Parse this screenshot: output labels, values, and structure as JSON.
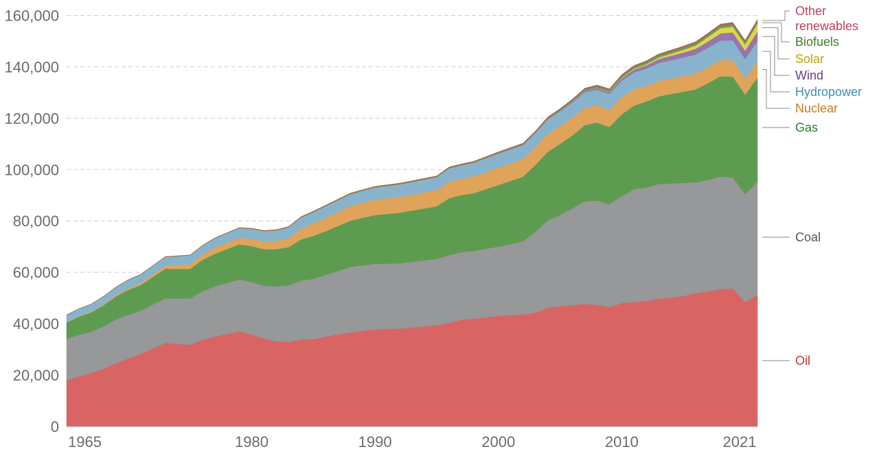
{
  "chart_data": {
    "type": "area",
    "stacked": true,
    "title": "",
    "xlabel": "",
    "ylabel": "",
    "xlim": [
      1965,
      2021
    ],
    "ylim": [
      0,
      165000
    ],
    "y_ticks": [
      0,
      20000,
      40000,
      60000,
      80000,
      100000,
      120000,
      140000,
      160000
    ],
    "y_tick_labels": [
      "0",
      "20,000",
      "40,000",
      "60,000",
      "80,000",
      "100,000",
      "120,000",
      "140,000",
      "160,000"
    ],
    "x_ticks": [
      1965,
      1980,
      1990,
      2000,
      2010,
      2021
    ],
    "x_tick_labels": [
      "1965",
      "1980",
      "1990",
      "2000",
      "2010",
      "2021"
    ],
    "grid": true,
    "legend_position": "right, labels at series ends",
    "keyframes": [
      1965,
      1966,
      1967,
      1968,
      1969,
      1970,
      1971,
      1973,
      1975,
      1976,
      1977,
      1979,
      1980,
      1981,
      1982,
      1983,
      1984,
      1985,
      1986,
      1988,
      1990,
      1992,
      1995,
      1996,
      1997,
      1998,
      2000,
      2002,
      2003,
      2004,
      2005,
      2006,
      2007,
      2008,
      2009,
      2010,
      2011,
      2012,
      2013,
      2015,
      2016,
      2017,
      2018,
      2019,
      2020,
      2021
    ],
    "series": [
      {
        "name": "Oil",
        "label": "Oil",
        "color": "#d96464",
        "label_color": "#c03232",
        "values": [
          18000,
          19500,
          20800,
          22600,
          24600,
          26500,
          28200,
          32500,
          31800,
          33800,
          35000,
          37000,
          35800,
          34300,
          33100,
          32900,
          33800,
          34000,
          35000,
          36600,
          37800,
          38100,
          39400,
          40300,
          41600,
          42000,
          43000,
          43600,
          44300,
          46200,
          46800,
          47200,
          47700,
          47300,
          46500,
          48000,
          48400,
          48900,
          49700,
          50800,
          51900,
          52600,
          53400,
          53700,
          48400,
          51200
        ]
      },
      {
        "name": "Coal",
        "label": "Coal",
        "color": "#979899",
        "label_color": "#555555",
        "values": [
          16000,
          16200,
          16100,
          16400,
          17000,
          17000,
          16800,
          17400,
          18000,
          18800,
          19500,
          20200,
          20400,
          20500,
          21400,
          22000,
          23000,
          23400,
          24000,
          25500,
          25500,
          25400,
          25800,
          26400,
          26300,
          26300,
          27000,
          28500,
          31500,
          34000,
          35500,
          37700,
          39900,
          40700,
          40000,
          41600,
          44000,
          44100,
          44700,
          44000,
          43100,
          43300,
          43900,
          43200,
          42000,
          44000
        ]
      },
      {
        "name": "Gas",
        "label": "Gas",
        "color": "#5d9b51",
        "label_color": "#2e7d32",
        "values": [
          6500,
          7000,
          7500,
          8200,
          9000,
          9700,
          10000,
          11500,
          11500,
          12200,
          12700,
          13700,
          14000,
          14200,
          14500,
          14900,
          16000,
          16800,
          17000,
          18000,
          19000,
          19700,
          20500,
          22100,
          22200,
          22500,
          24000,
          25100,
          26000,
          26700,
          27700,
          28400,
          29700,
          30300,
          30100,
          31900,
          32500,
          33500,
          34100,
          35500,
          36200,
          37800,
          39000,
          39300,
          38800,
          40500
        ]
      },
      {
        "name": "Nuclear",
        "label": "Nuclear",
        "color": "#e0a35a",
        "label_color": "#c77a1c",
        "values": [
          200,
          250,
          300,
          400,
          500,
          600,
          800,
          1200,
          1800,
          2000,
          2400,
          2500,
          2800,
          3000,
          3200,
          3500,
          4200,
          4800,
          5200,
          5700,
          6000,
          6200,
          6300,
          6500,
          6300,
          6500,
          6800,
          6900,
          6800,
          7000,
          6900,
          6900,
          6800,
          6700,
          6600,
          6700,
          6400,
          6000,
          6000,
          6100,
          6200,
          6200,
          6300,
          6400,
          6200,
          6400
        ]
      },
      {
        "name": "Hydropower",
        "label": "Hydropower",
        "color": "#87b4cc",
        "label_color": "#3a8fb7",
        "values": [
          2700,
          2800,
          2900,
          3000,
          3100,
          3200,
          3300,
          3400,
          3500,
          3500,
          3600,
          3800,
          3900,
          4000,
          4100,
          4200,
          4300,
          4400,
          4500,
          4600,
          4700,
          4800,
          5000,
          5100,
          5200,
          5300,
          5400,
          5400,
          5500,
          5600,
          5700,
          5900,
          6000,
          6100,
          6200,
          6400,
          6500,
          6800,
          7000,
          7200,
          7400,
          7500,
          7600,
          7700,
          7600,
          7800
        ]
      },
      {
        "name": "Wind",
        "label": "Wind",
        "color": "#9a74ad",
        "label_color": "#6a3d8c",
        "values": [
          0,
          0,
          0,
          0,
          0,
          0,
          0,
          0,
          0,
          0,
          0,
          0,
          0,
          0,
          0,
          0,
          0,
          0,
          0,
          0,
          10,
          20,
          30,
          40,
          50,
          70,
          100,
          150,
          200,
          250,
          300,
          400,
          500,
          600,
          700,
          900,
          1100,
          1300,
          1500,
          2000,
          2200,
          2500,
          2800,
          3100,
          3300,
          3800
        ]
      },
      {
        "name": "Solar",
        "label": "Solar",
        "color": "#ddd64a",
        "label_color": "#b8a800",
        "values": [
          0,
          0,
          0,
          0,
          0,
          0,
          0,
          0,
          0,
          0,
          0,
          0,
          0,
          0,
          0,
          0,
          0,
          0,
          0,
          0,
          0,
          0,
          0,
          0,
          0,
          0,
          0,
          5,
          10,
          15,
          20,
          30,
          50,
          80,
          120,
          200,
          300,
          400,
          600,
          1000,
          1300,
          1700,
          2000,
          2200,
          2400,
          3000
        ]
      },
      {
        "name": "Biofuels",
        "label": "Biofuels",
        "color": "#6f9f58",
        "label_color": "#3f7f2a",
        "values": [
          0,
          0,
          0,
          0,
          0,
          0,
          0,
          0,
          0,
          0,
          0,
          40,
          60,
          80,
          100,
          100,
          120,
          140,
          150,
          150,
          160,
          160,
          170,
          180,
          180,
          180,
          180,
          200,
          250,
          280,
          320,
          400,
          500,
          600,
          650,
          700,
          720,
          740,
          760,
          800,
          820,
          850,
          900,
          950,
          900,
          950
        ]
      },
      {
        "name": "Other renewables",
        "label": "Other\nrenewables",
        "color": "#a46a57",
        "label_color": "#c0405f",
        "values": [
          100,
          100,
          100,
          110,
          120,
          130,
          140,
          150,
          160,
          170,
          180,
          200,
          210,
          220,
          230,
          240,
          260,
          280,
          290,
          300,
          320,
          330,
          350,
          360,
          370,
          380,
          400,
          420,
          440,
          460,
          480,
          500,
          520,
          540,
          560,
          580,
          600,
          620,
          640,
          660,
          680,
          700,
          720,
          740,
          760,
          780
        ]
      }
    ]
  }
}
